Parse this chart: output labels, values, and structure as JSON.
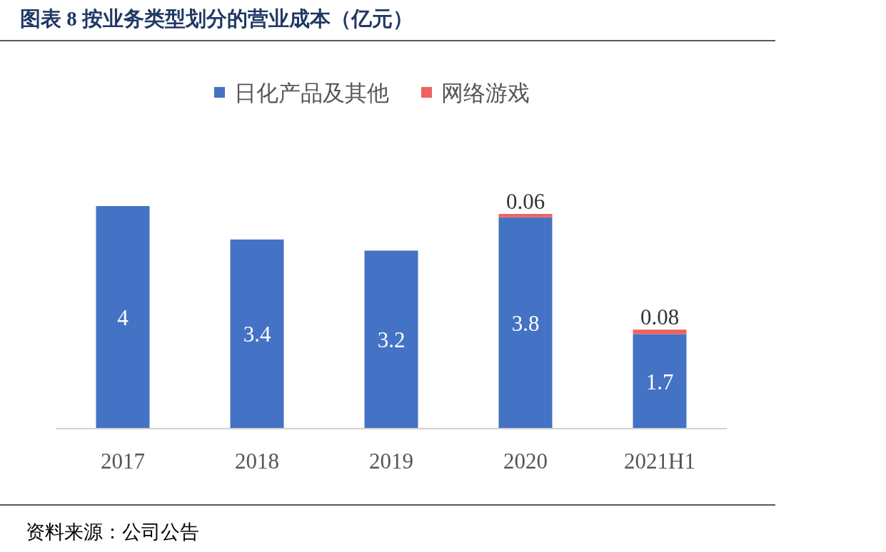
{
  "chart_data": {
    "type": "bar",
    "title": "图表 8 按业务类型划分的营业成本（亿元）",
    "categories": [
      "2017",
      "2018",
      "2019",
      "2020",
      "2021H1"
    ],
    "stacked": true,
    "data_labels": true,
    "legend": "top",
    "series": [
      {
        "name": "日化产品及其他",
        "color": "#4472c4",
        "values": [
          4,
          3.4,
          3.2,
          3.8,
          1.7
        ]
      },
      {
        "name": "网络游戏",
        "color": "#f0625f",
        "values": [
          null,
          null,
          null,
          0.06,
          0.08
        ]
      }
    ],
    "annotations": [
      "资料来源：公司公告"
    ]
  }
}
